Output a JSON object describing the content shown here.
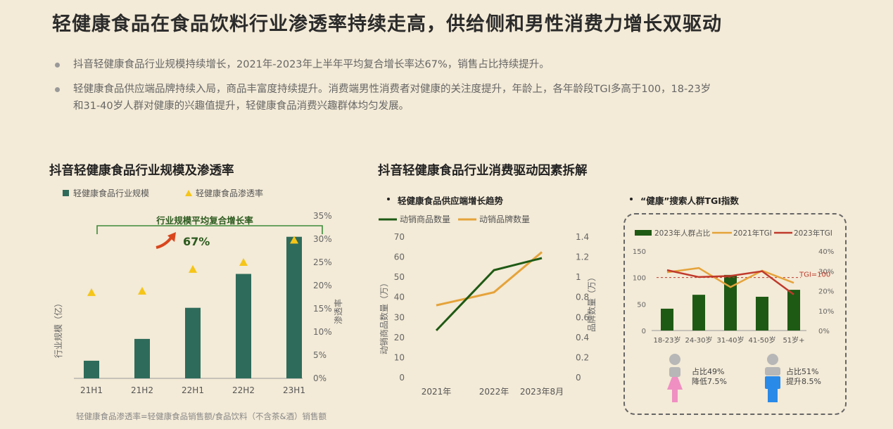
{
  "title": "轻健康食品在食品饮料行业渗透率持续走高，供给侧和男性消费力增长双驱动",
  "bullets": [
    "抖音轻健康食品行业规模持续增长，2021年-2023年上半年平均复合增长率达67%，销售占比持续提升。",
    "轻健康食品供应端品牌持续入局，商品丰富度持续提升。消费端男性消费者对健康的关注度提升，年龄上，各年龄段TGI多高于100，18-23岁",
    "和31-40岁人群对健康的兴趣值提升，轻健康食品消费兴趣群体均匀发展。"
  ],
  "colors": {
    "green": "#2e6b5a",
    "yellow": "#f5c518",
    "dark_green": "#1e5a14",
    "orange": "#e5a33a",
    "red": "#c0392b",
    "accent": "#d9461e"
  },
  "left": {
    "section_title": "抖音轻健康食品行业规模及渗透率",
    "legend_bar": "轻健康食品行业规模",
    "legend_tri": "轻健康食品渗透率",
    "cagr_label": "行业规模平均复合增长率",
    "cagr_value": "67%",
    "footnote": "轻健康食品渗透率=轻健康食品销售额/食品饮料（不含茶&酒）销售额"
  },
  "middle": {
    "section_title": "抖音轻健康食品行业消费驱动因素拆解",
    "sub_title": "轻健康食品供应端增长趋势"
  },
  "right": {
    "sub_title": "“健康”搜索人群TGI指数",
    "female_share": "占比49%",
    "female_change": "降低7.5%",
    "male_share": "占比51%",
    "male_change": "提升8.5%"
  },
  "chart_data": [
    {
      "type": "bar",
      "categories": [
        "21H1",
        "21H2",
        "22H1",
        "22H2",
        "23H1"
      ],
      "series": [
        {
          "name": "轻健康食品行业规模",
          "type": "bar",
          "axis": "left",
          "values": [
            3.8,
            8.5,
            15.2,
            22.5,
            30.5
          ]
        },
        {
          "name": "轻健康食品渗透率",
          "type": "scatter",
          "marker": "triangle",
          "axis": "right",
          "values": [
            18.5,
            18.8,
            23.5,
            25.0,
            29.8
          ]
        }
      ],
      "ylabel": "行业规模（亿）",
      "y2label": "渗透率",
      "y2ticks": [
        "0%",
        "5%",
        "10%",
        "15%",
        "20%",
        "25%",
        "30%",
        "35%"
      ],
      "y2lim": [
        0,
        35
      ]
    },
    {
      "type": "line",
      "categories": [
        "2021年",
        "2022年",
        "2023年8月"
      ],
      "series": [
        {
          "name": "动销商品数量",
          "axis": "left",
          "values": [
            23.5,
            53.5,
            59.5
          ]
        },
        {
          "name": "动销品牌数量",
          "axis": "right",
          "values": [
            0.72,
            0.85,
            1.25
          ]
        }
      ],
      "ylabel": "动销商品数量（万）",
      "y2label": "品牌数量（万）",
      "yticks": [
        "0",
        "10",
        "20",
        "30",
        "40",
        "50",
        "60",
        "70"
      ],
      "ylim": [
        0,
        70
      ],
      "y2ticks": [
        "0",
        "0.2",
        "0.4",
        "0.6",
        "0.8",
        "1",
        "1.2",
        "1.4"
      ],
      "y2lim": [
        0,
        1.4
      ]
    },
    {
      "type": "bar",
      "categories": [
        "18-23岁",
        "24-30岁",
        "31-40岁",
        "41-50岁",
        "51岁+"
      ],
      "series": [
        {
          "name": "2023年人群占比",
          "type": "bar",
          "axis": "right",
          "values": [
            11.0,
            18.0,
            28.0,
            17.0,
            20.5
          ]
        },
        {
          "name": "2021年TGI",
          "type": "line",
          "axis": "left",
          "values": [
            110,
            118,
            82,
            113,
            90
          ]
        },
        {
          "name": "2023年TGI",
          "type": "line",
          "axis": "left",
          "values": [
            114,
            101,
            103,
            112,
            68
          ]
        }
      ],
      "yticks": [
        "0",
        "50",
        "100",
        "150"
      ],
      "ylim": [
        0,
        150
      ],
      "y2ticks": [
        "0%",
        "10%",
        "20%",
        "30%",
        "40%"
      ],
      "y2lim": [
        0,
        40
      ],
      "reference_line": {
        "label": "TGI=100",
        "value": 100
      }
    }
  ]
}
